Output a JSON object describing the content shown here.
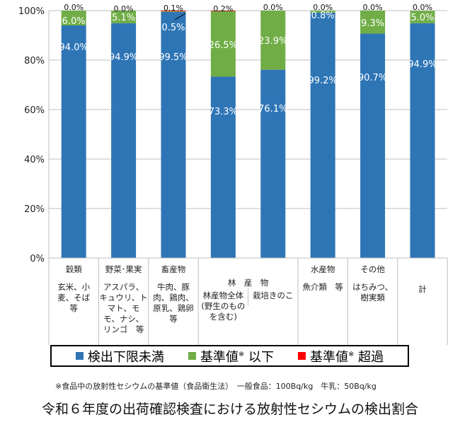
{
  "chart_data": {
    "type": "bar",
    "stacked": true,
    "categories": [
      "穀類",
      "野菜・果実",
      "畜産物",
      "林産物全体",
      "栽培きのこ",
      "水産物",
      "その他",
      "計"
    ],
    "series": [
      {
        "name": "検出下限未満",
        "color": "#2e75b6",
        "values": [
          94.0,
          94.9,
          99.5,
          73.3,
          76.1,
          99.2,
          90.7,
          94.9
        ]
      },
      {
        "name": "基準値※以下",
        "color": "#70ad47",
        "values": [
          6.0,
          5.1,
          0.5,
          26.5,
          23.9,
          0.8,
          9.3,
          5.0
        ]
      },
      {
        "name": "基準値※超過",
        "color": "#ff0000",
        "values": [
          0.0,
          0.0,
          0.1,
          0.2,
          0.0,
          0.0,
          0.0,
          0.0
        ]
      }
    ],
    "labels": {
      "blue": [
        "94.0%",
        "94.9%",
        "99.5%",
        "73.3%",
        "76.1%",
        "99.2%",
        "90.7%",
        "94.9%"
      ],
      "green": [
        "6.0%",
        "5.1%",
        "0.5%",
        "26.5%",
        "23.9%",
        "0.8%",
        "9.3%",
        "5.0%"
      ],
      "red": [
        "0.0%",
        "0.0%",
        "0.1%",
        "0.2%",
        "0.0%",
        "0.0%",
        "0.0%",
        "0.0%"
      ]
    },
    "ylim": [
      0,
      100
    ],
    "yticks": [
      "0%",
      "20%",
      "40%",
      "60%",
      "80%",
      "100%"
    ],
    "grid": true,
    "legend_position": "bottom"
  },
  "table": {
    "columns": [
      {
        "head": "穀類",
        "items": "玄米、小麦、そば　等"
      },
      {
        "head": "野菜･果実",
        "items": "アスパラ、キュウリ、トマト、モモ、ナシ、リンゴ　等"
      },
      {
        "head": "畜産物",
        "items": "牛肉、豚肉、鶏肉、原乳、鶏卵　等"
      },
      {
        "head": "",
        "items": "林産物全体(野生のものを含む)"
      },
      {
        "head": "",
        "items": "栽培きのこ"
      },
      {
        "head": "水産物",
        "items": "魚介類　等"
      },
      {
        "head": "その他",
        "items": "はちみつ、樹実類"
      },
      {
        "head": "",
        "items": "計"
      }
    ],
    "forest_head": "林　産　物"
  },
  "legend": {
    "items": [
      {
        "label": "検出下限未満",
        "sup": "",
        "suffix": "",
        "color": "#2e75b6"
      },
      {
        "label": "基準値",
        "sup": "※",
        "suffix": " 以下",
        "color": "#70ad47"
      },
      {
        "label": "基準値",
        "sup": "※",
        "suffix": " 超過",
        "color": "#ff0000"
      }
    ]
  },
  "footnote": "※食品中の放射性セシウムの基準値（食品衛生法）　一般食品：100Bq/kg　牛乳：50Bq/kg",
  "title": "令和６年度の出荷確認検査における放射性セシウムの検出割合"
}
